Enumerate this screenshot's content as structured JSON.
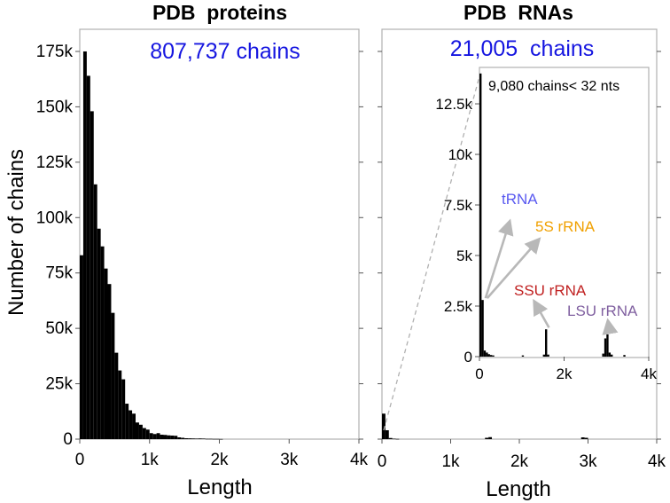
{
  "chart_data": [
    {
      "type": "bar",
      "title": "PDB  proteins",
      "annotation": "807,737 chains",
      "xlabel": "Length",
      "ylabel": "Number of chains",
      "xlim": [
        0,
        4000
      ],
      "ylim": [
        0,
        185000
      ],
      "xticks": [
        0,
        1000,
        2000,
        3000,
        4000
      ],
      "xtick_labels": [
        "0",
        "1k",
        "2k",
        "3k",
        "4k"
      ],
      "yticks": [
        0,
        25000,
        50000,
        75000,
        100000,
        125000,
        150000,
        175000
      ],
      "ytick_labels": [
        "0",
        "25k",
        "50k",
        "75k",
        "100k",
        "125k",
        "150k",
        "175k"
      ],
      "bin_width": 50,
      "bin_starts": [
        0,
        50,
        100,
        150,
        200,
        250,
        300,
        350,
        400,
        450,
        500,
        550,
        600,
        650,
        700,
        750,
        800,
        850,
        900,
        950,
        1000,
        1050,
        1100,
        1150,
        1200,
        1250,
        1300,
        1350,
        1400,
        1450,
        1500,
        1550,
        1600,
        1650,
        1700,
        1750,
        1800,
        1850,
        1900,
        1950,
        2000
      ],
      "values": [
        83000,
        175000,
        164000,
        148000,
        115000,
        95000,
        87000,
        77000,
        70000,
        57000,
        39000,
        31000,
        27000,
        16000,
        13000,
        11500,
        7500,
        6500,
        5000,
        4300,
        2700,
        2300,
        2700,
        2000,
        1900,
        1700,
        1600,
        1500,
        800,
        600,
        400,
        350,
        300,
        250,
        300,
        250,
        150,
        150,
        100,
        100,
        50
      ],
      "colors": {
        "bars": "#000000",
        "annotation": "#1515e0"
      }
    },
    {
      "type": "bar",
      "title": "PDB  RNAs",
      "annotation": "21,005  chains",
      "xlabel": "Length",
      "ylabel": "",
      "xlim": [
        0,
        4000
      ],
      "ylim": [
        0,
        185000
      ],
      "xticks": [
        0,
        1000,
        2000,
        3000,
        4000
      ],
      "xtick_labels": [
        "0",
        "1k",
        "2k",
        "3k",
        "4k"
      ],
      "bin_width": 50,
      "bin_starts": [
        0,
        50,
        100,
        150,
        200,
        1500,
        1550,
        2900,
        2950
      ],
      "values": [
        11500,
        4000,
        500,
        200,
        100,
        600,
        900,
        800,
        600
      ],
      "colors": {
        "bars": "#000000",
        "annotation": "#1515e0"
      },
      "inset": {
        "type": "bar",
        "xlim": [
          0,
          4000
        ],
        "ylim": [
          0,
          14300
        ],
        "xticks": [
          0,
          2000,
          4000
        ],
        "xtick_labels": [
          "0",
          "2k",
          "4k"
        ],
        "yticks": [
          0,
          2500,
          5000,
          7500,
          10000,
          12500
        ],
        "ytick_labels": [
          "0",
          "2.5k",
          "5k",
          "7.5k",
          "10k",
          "12.5k"
        ],
        "bin_width": 50,
        "bin_starts": [
          0,
          50,
          100,
          150,
          200,
          250,
          300,
          1000,
          1500,
          1550,
          1600,
          2900,
          2950,
          3000,
          3050,
          3100,
          3400
        ],
        "values": [
          14000,
          2800,
          300,
          200,
          120,
          80,
          60,
          60,
          100,
          1350,
          100,
          150,
          900,
          1100,
          200,
          100,
          80
        ],
        "note": "9,080 chains< 32 nts",
        "labels": [
          {
            "text": "tRNA",
            "color": "#5a5af0",
            "points_to": [
              80,
              2800
            ]
          },
          {
            "text": "5S rRNA",
            "color": "#f0a000",
            "points_to": [
              120,
              2800
            ]
          },
          {
            "text": "SSU rRNA",
            "color": "#c02020",
            "points_to": [
              1580,
              1350
            ]
          },
          {
            "text": "LSU rRNA",
            "color": "#8060a0",
            "points_to": [
              3020,
              1100
            ]
          }
        ]
      }
    }
  ]
}
